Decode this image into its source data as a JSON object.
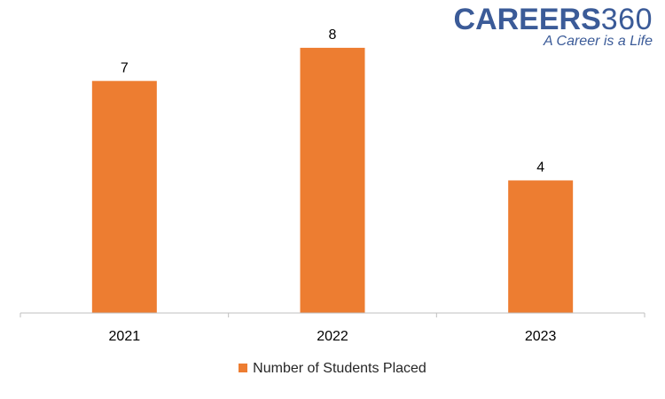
{
  "logo": {
    "word": "CAREERS",
    "number": "360",
    "tagline": "A Career is a Life",
    "word_color": "#3b5b98",
    "number_color": "#3b5b98",
    "tagline_color": "#3b5b98"
  },
  "colors": {
    "bar": "#ed7d31",
    "axis": "#bfbfbf",
    "label": "#000000"
  },
  "chart_data": {
    "type": "bar",
    "title": "",
    "xlabel": "",
    "ylabel": "",
    "categories": [
      "2021",
      "2022",
      "2023"
    ],
    "series": [
      {
        "name": "Number of Students Placed",
        "values": [
          7,
          8,
          4
        ]
      }
    ],
    "ylim": [
      0,
      8.8
    ],
    "grid": false,
    "legend": "bottom-center",
    "data_labels": true
  }
}
